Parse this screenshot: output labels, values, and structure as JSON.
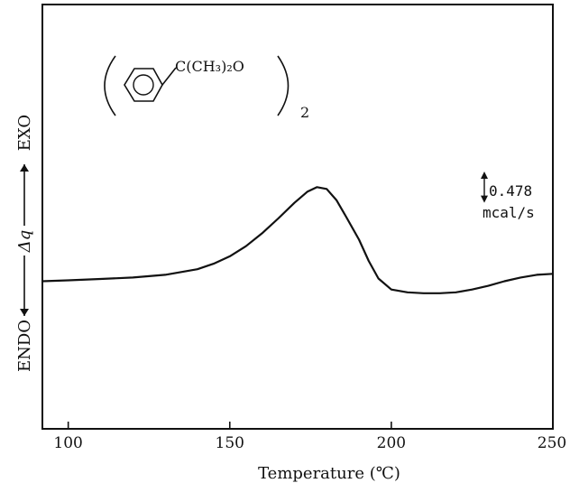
{
  "chart_data": {
    "type": "line",
    "xlabel": "Temperature (℃)",
    "ylabel": {
      "left": "ENDO",
      "symbol": "Δq",
      "right": "EXO"
    },
    "xlim": [
      92,
      250
    ],
    "ylim": [
      -1.6,
      3.0
    ],
    "x_ticks": [
      100,
      150,
      200,
      250
    ],
    "x_tick_labels": [
      "100",
      "150",
      "200",
      "250"
    ],
    "scale_bar": {
      "value": "0.478",
      "unit": "mcal/s",
      "magnitude": 0.3
    },
    "compound": {
      "substituent": "C(CH₃)₂O",
      "subscript": "2"
    },
    "series": [
      {
        "x": [
          92,
          100,
          110,
          120,
          130,
          140,
          145,
          150,
          155,
          160,
          165,
          170,
          174,
          177,
          180,
          183,
          186,
          190,
          193,
          196,
          200,
          205,
          210,
          215,
          220,
          225,
          230,
          235,
          240,
          245,
          250
        ],
        "y": [
          0.0,
          0.01,
          0.025,
          0.04,
          0.07,
          0.13,
          0.19,
          0.27,
          0.38,
          0.52,
          0.68,
          0.85,
          0.97,
          1.02,
          1.0,
          0.88,
          0.7,
          0.45,
          0.22,
          0.03,
          -0.09,
          -0.12,
          -0.13,
          -0.13,
          -0.12,
          -0.09,
          -0.05,
          0.0,
          0.04,
          0.07,
          0.08
        ]
      }
    ],
    "grid": false
  }
}
